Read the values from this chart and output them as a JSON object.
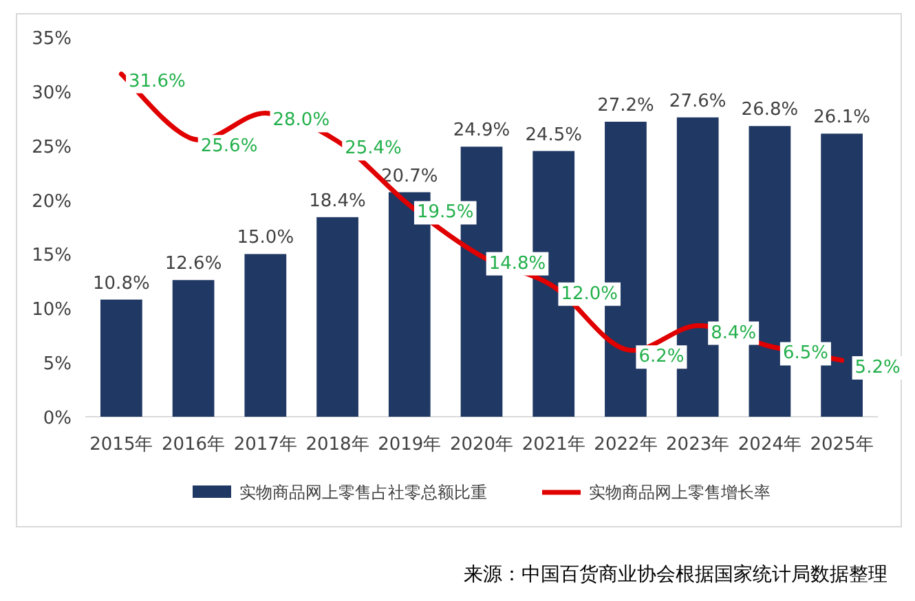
{
  "chart_data": {
    "type": "bar",
    "categories": [
      "2015年",
      "2016年",
      "2017年",
      "2018年",
      "2019年",
      "2020年",
      "2021年",
      "2022年",
      "2023年",
      "2024年",
      "2025年"
    ],
    "ylim": [
      0,
      35
    ],
    "yticks": [
      {
        "value": 0,
        "label": "0%"
      },
      {
        "value": 5,
        "label": "5%"
      },
      {
        "value": 10,
        "label": "10%"
      },
      {
        "value": 15,
        "label": "15%"
      },
      {
        "value": 20,
        "label": "20%"
      },
      {
        "value": 25,
        "label": "25%"
      },
      {
        "value": 30,
        "label": "30%"
      },
      {
        "value": 35,
        "label": "35%"
      }
    ],
    "legend": "bottom",
    "series": [
      {
        "name": "实物商品网上零售占社零总额比重",
        "color": "#203864",
        "values": [
          10.8,
          12.6,
          15.0,
          18.4,
          20.7,
          24.9,
          24.5,
          27.2,
          27.6,
          26.8,
          26.1
        ],
        "value_labels": [
          "10.8%",
          "12.6%",
          "15.0%",
          "18.4%",
          "20.7%",
          "24.9%",
          "24.5%",
          "27.2%",
          "27.6%",
          "26.8%",
          "26.1%"
        ]
      },
      {
        "name": "实物商品网上零售增长率",
        "type": "line",
        "color": "#e00000",
        "values": [
          31.6,
          25.6,
          28.0,
          25.4,
          19.5,
          14.8,
          12.0,
          6.2,
          8.4,
          6.5,
          5.2
        ],
        "value_labels": [
          "31.6%",
          "25.6%",
          "28.0%",
          "25.4%",
          "19.5%",
          "14.8%",
          "12.0%",
          "6.2%",
          "8.4%",
          "6.5%",
          "5.2%"
        ]
      }
    ],
    "annotations": [
      "来源：中国百货商业协会根据国家统计局数据整理"
    ]
  }
}
